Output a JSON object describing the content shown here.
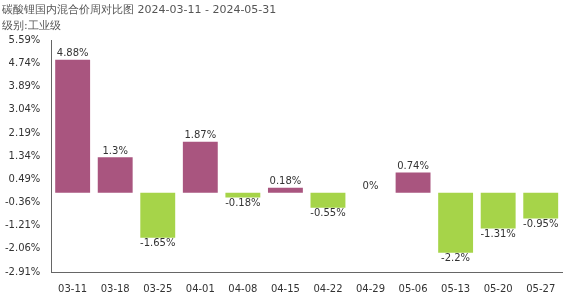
{
  "chart_data": {
    "type": "bar",
    "title": "碳酸锂国内混合价周对比图 2024-03-11 - 2024-05-31",
    "subtitle": "级别:工业级",
    "categories": [
      "03-11",
      "03-18",
      "03-25",
      "04-01",
      "04-08",
      "04-15",
      "04-22",
      "04-29",
      "05-06",
      "05-13",
      "05-20",
      "05-27"
    ],
    "values": [
      4.88,
      1.3,
      -1.65,
      1.87,
      -0.18,
      0.18,
      -0.55,
      0,
      0.74,
      -2.2,
      -1.31,
      -0.95
    ],
    "value_labels": [
      "4.88%",
      "1.3%",
      "-1.65%",
      "1.87%",
      "-0.18%",
      "0.18%",
      "-0.55%",
      "0%",
      "0.74%",
      "-2.2%",
      "-1.31%",
      "-0.95%"
    ],
    "colors": [
      "#a9557f",
      "#a9557f",
      "#a6d449",
      "#a9557f",
      "#a6d449",
      "#a9557f",
      "#a6d449",
      "#a9557f",
      "#a9557f",
      "#a6d449",
      "#a6d449",
      "#a6d449"
    ],
    "data_labels": true,
    "ylim": [
      -2.91,
      5.59
    ],
    "yticks": [
      {
        "value": 5.59,
        "label": "5.59%"
      },
      {
        "value": 4.74,
        "label": "4.74%"
      },
      {
        "value": 3.89,
        "label": "3.89%"
      },
      {
        "value": 3.04,
        "label": "3.04%"
      },
      {
        "value": 2.19,
        "label": "2.19%"
      },
      {
        "value": 1.34,
        "label": "1.34%"
      },
      {
        "value": 0.49,
        "label": "0.49%"
      },
      {
        "value": -0.36,
        "label": "-0.36%"
      },
      {
        "value": -1.21,
        "label": "-1.21%"
      },
      {
        "value": -2.06,
        "label": "-2.06%"
      },
      {
        "value": -2.91,
        "label": "-2.91%"
      }
    ],
    "grid": false
  }
}
